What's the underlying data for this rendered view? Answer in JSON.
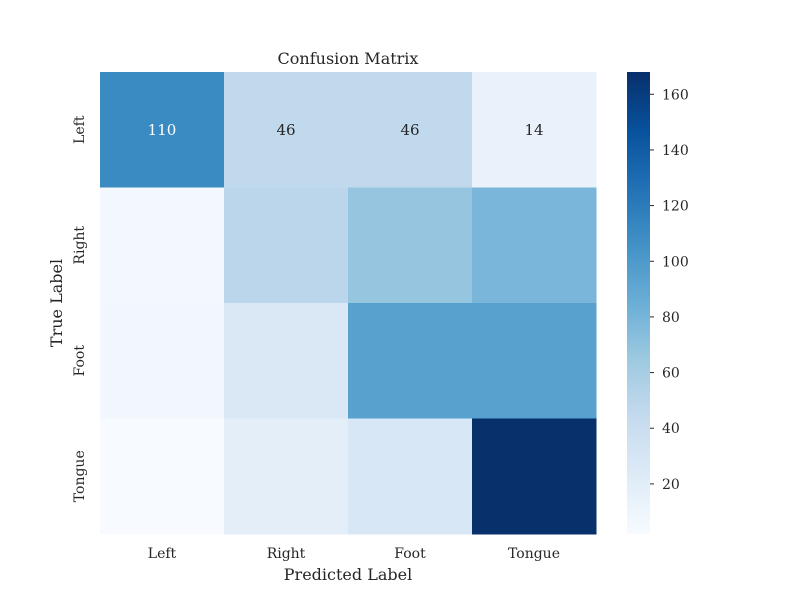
{
  "chart_data": {
    "type": "heatmap",
    "title": "Confusion Matrix",
    "xlabel": "Predicted Label",
    "ylabel": "True Label",
    "x_categories": [
      "Left",
      "Right",
      "Foot",
      "Tongue"
    ],
    "y_categories": [
      "Left",
      "Right",
      "Foot",
      "Tongue"
    ],
    "values": [
      [
        110,
        46,
        46,
        14
      ],
      [
        6,
        49,
        68,
        79
      ],
      [
        7,
        26,
        95,
        95
      ],
      [
        2,
        19,
        28,
        168
      ]
    ],
    "annotations": [
      [
        "110",
        "46",
        "46",
        "14"
      ],
      [
        "",
        "",
        "",
        ""
      ],
      [
        "",
        "",
        "",
        ""
      ],
      [
        "",
        "",
        "",
        ""
      ]
    ],
    "colormap": "Blues",
    "colorbar": {
      "range": [
        2,
        168
      ],
      "ticks": [
        20,
        40,
        60,
        80,
        100,
        120,
        140,
        160
      ]
    }
  }
}
